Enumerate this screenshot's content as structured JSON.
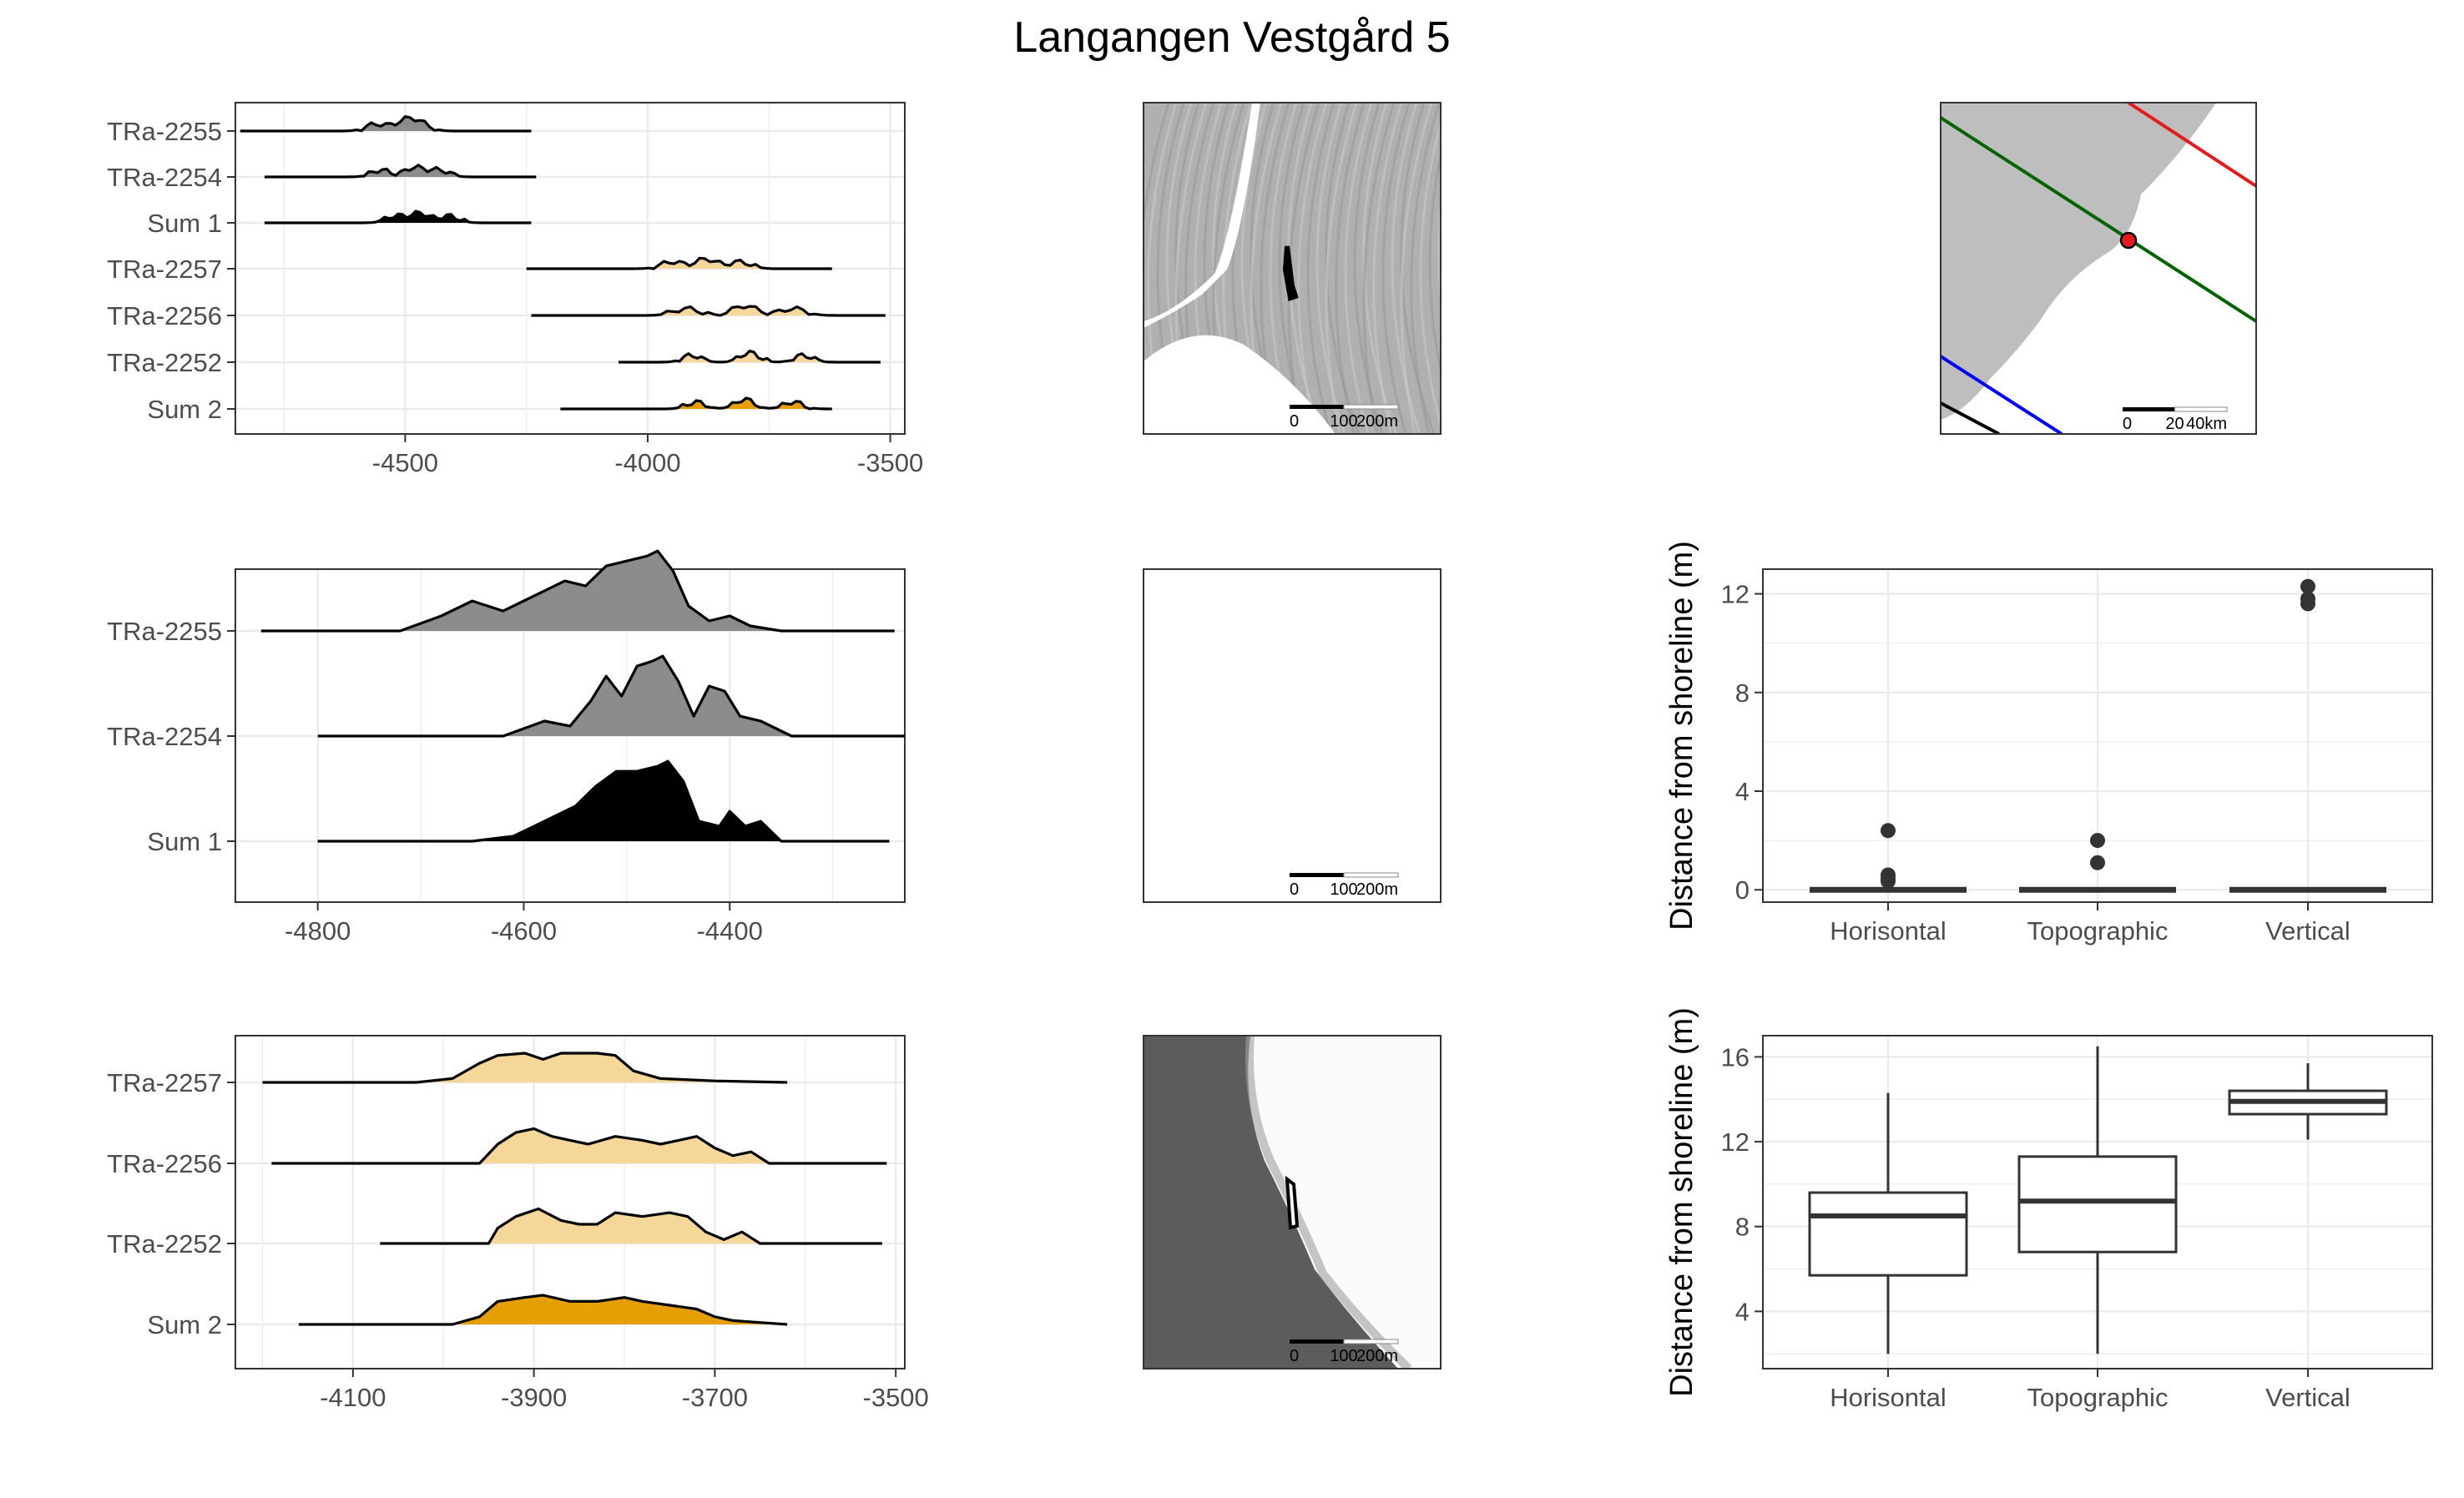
{
  "figure": {
    "title": "Langangen Vestgård 5"
  },
  "colors": {
    "group1": "#8c8c8c",
    "group1_dark": "#000000",
    "group2_light": "#f5d79a",
    "group2": "#e69f00"
  },
  "chart_data": [
    {
      "id": "ridge1",
      "type": "area",
      "xlim": [
        -4850,
        -3470
      ],
      "xticks": [
        -4500,
        -4000,
        -3500
      ],
      "xtick_labels": [
        "-4500",
        "-4000",
        "-3500"
      ],
      "rows": [
        {
          "label": "TRa-2255",
          "range": [
            -4840,
            -4240
          ],
          "peaks": [
            -4560,
            -4500,
            -4470
          ],
          "fill": "group1"
        },
        {
          "label": "TRa-2254",
          "range": [
            -4790,
            -4230
          ],
          "peaks": [
            -4550,
            -4480,
            -4430
          ],
          "fill": "group1"
        },
        {
          "label": "Sum 1",
          "range": [
            -4790,
            -4240
          ],
          "peaks": [
            -4520,
            -4470,
            -4410
          ],
          "fill": "group1_dark"
        },
        {
          "label": "TRa-2257",
          "range": [
            -4250,
            -3620
          ],
          "peaks": [
            -3950,
            -3880,
            -3810
          ],
          "fill": "group2_light"
        },
        {
          "label": "TRa-2256",
          "range": [
            -4240,
            -3510
          ],
          "peaks": [
            -3920,
            -3800,
            -3700
          ],
          "fill": "group2_light"
        },
        {
          "label": "TRa-2252",
          "range": [
            -4060,
            -3520
          ],
          "peaks": [
            -3910,
            -3790,
            -3680
          ],
          "fill": "group2_light"
        },
        {
          "label": "Sum 2",
          "range": [
            -4180,
            -3620
          ],
          "peaks": [
            -3900,
            -3800,
            -3700
          ],
          "fill": "group2"
        }
      ]
    },
    {
      "id": "ridge2",
      "type": "area",
      "xlim": [
        -4880,
        -4230
      ],
      "xticks": [
        -4800,
        -4600,
        -4400
      ],
      "xtick_labels": [
        "-4800",
        "-4600",
        "-4400"
      ],
      "rows": [
        {
          "label": "TRa-2255",
          "range": [
            -4855,
            -4240
          ],
          "fill": "group1",
          "profile": [
            [
              -4855,
              0
            ],
            [
              -4720,
              0
            ],
            [
              -4680,
              0.15
            ],
            [
              -4650,
              0.3
            ],
            [
              -4620,
              0.2
            ],
            [
              -4590,
              0.35
            ],
            [
              -4560,
              0.5
            ],
            [
              -4540,
              0.45
            ],
            [
              -4520,
              0.65
            ],
            [
              -4500,
              0.7
            ],
            [
              -4480,
              0.75
            ],
            [
              -4470,
              0.8
            ],
            [
              -4455,
              0.6
            ],
            [
              -4440,
              0.25
            ],
            [
              -4420,
              0.1
            ],
            [
              -4400,
              0.15
            ],
            [
              -4380,
              0.05
            ],
            [
              -4350,
              0
            ],
            [
              -4240,
              0
            ]
          ]
        },
        {
          "label": "TRa-2254",
          "range": [
            -4800,
            -4230
          ],
          "fill": "group1",
          "profile": [
            [
              -4800,
              0
            ],
            [
              -4620,
              0
            ],
            [
              -4580,
              0.15
            ],
            [
              -4555,
              0.1
            ],
            [
              -4535,
              0.35
            ],
            [
              -4520,
              0.6
            ],
            [
              -4505,
              0.4
            ],
            [
              -4490,
              0.7
            ],
            [
              -4475,
              0.75
            ],
            [
              -4465,
              0.8
            ],
            [
              -4450,
              0.55
            ],
            [
              -4435,
              0.2
            ],
            [
              -4420,
              0.5
            ],
            [
              -4405,
              0.45
            ],
            [
              -4390,
              0.2
            ],
            [
              -4370,
              0.15
            ],
            [
              -4340,
              0
            ],
            [
              -4230,
              0
            ]
          ]
        },
        {
          "label": "Sum 1",
          "range": [
            -4800,
            -4245
          ],
          "fill": "group1_dark",
          "profile": [
            [
              -4800,
              0
            ],
            [
              -4650,
              0
            ],
            [
              -4610,
              0.05
            ],
            [
              -4580,
              0.2
            ],
            [
              -4550,
              0.35
            ],
            [
              -4530,
              0.55
            ],
            [
              -4510,
              0.7
            ],
            [
              -4490,
              0.7
            ],
            [
              -4470,
              0.75
            ],
            [
              -4460,
              0.8
            ],
            [
              -4445,
              0.6
            ],
            [
              -4430,
              0.2
            ],
            [
              -4410,
              0.15
            ],
            [
              -4400,
              0.3
            ],
            [
              -4385,
              0.15
            ],
            [
              -4370,
              0.2
            ],
            [
              -4350,
              0
            ],
            [
              -4245,
              0
            ]
          ]
        }
      ]
    },
    {
      "id": "ridge3",
      "type": "area",
      "xlim": [
        -4230,
        -3490
      ],
      "xticks": [
        -4100,
        -3900,
        -3700,
        -3500
      ],
      "xtick_labels": [
        "-4100",
        "-3900",
        "-3700",
        "-3500"
      ],
      "rows": [
        {
          "label": "TRa-2257",
          "range": [
            -4200,
            -3620
          ],
          "fill": "group2_light",
          "profile": [
            [
              -4200,
              0
            ],
            [
              -4030,
              0
            ],
            [
              -3990,
              0.05
            ],
            [
              -3960,
              0.25
            ],
            [
              -3940,
              0.35
            ],
            [
              -3910,
              0.38
            ],
            [
              -3890,
              0.3
            ],
            [
              -3870,
              0.38
            ],
            [
              -3830,
              0.38
            ],
            [
              -3810,
              0.35
            ],
            [
              -3790,
              0.15
            ],
            [
              -3760,
              0.05
            ],
            [
              -3700,
              0.02
            ],
            [
              -3620,
              0
            ]
          ]
        },
        {
          "label": "TRa-2256",
          "range": [
            -4190,
            -3510
          ],
          "fill": "group2_light",
          "profile": [
            [
              -4190,
              0
            ],
            [
              -3960,
              0
            ],
            [
              -3940,
              0.25
            ],
            [
              -3920,
              0.4
            ],
            [
              -3900,
              0.45
            ],
            [
              -3880,
              0.35
            ],
            [
              -3860,
              0.3
            ],
            [
              -3840,
              0.25
            ],
            [
              -3810,
              0.35
            ],
            [
              -3780,
              0.3
            ],
            [
              -3760,
              0.25
            ],
            [
              -3740,
              0.3
            ],
            [
              -3720,
              0.35
            ],
            [
              -3700,
              0.2
            ],
            [
              -3680,
              0.1
            ],
            [
              -3660,
              0.15
            ],
            [
              -3640,
              0
            ],
            [
              -3510,
              0
            ]
          ]
        },
        {
          "label": "TRa-2252",
          "range": [
            -4070,
            -3515
          ],
          "fill": "group2_light",
          "profile": [
            [
              -4070,
              0
            ],
            [
              -3950,
              0
            ],
            [
              -3940,
              0.2
            ],
            [
              -3920,
              0.35
            ],
            [
              -3895,
              0.45
            ],
            [
              -3870,
              0.3
            ],
            [
              -3850,
              0.25
            ],
            [
              -3830,
              0.25
            ],
            [
              -3810,
              0.4
            ],
            [
              -3780,
              0.35
            ],
            [
              -3750,
              0.4
            ],
            [
              -3730,
              0.35
            ],
            [
              -3710,
              0.15
            ],
            [
              -3690,
              0.05
            ],
            [
              -3670,
              0.15
            ],
            [
              -3650,
              0
            ],
            [
              -3515,
              0
            ]
          ]
        },
        {
          "label": "Sum 2",
          "range": [
            -4160,
            -3620
          ],
          "fill": "group2",
          "profile": [
            [
              -4160,
              0
            ],
            [
              -3990,
              0
            ],
            [
              -3960,
              0.1
            ],
            [
              -3940,
              0.3
            ],
            [
              -3910,
              0.35
            ],
            [
              -3890,
              0.38
            ],
            [
              -3860,
              0.3
            ],
            [
              -3830,
              0.3
            ],
            [
              -3800,
              0.35
            ],
            [
              -3780,
              0.3
            ],
            [
              -3750,
              0.25
            ],
            [
              -3720,
              0.2
            ],
            [
              -3700,
              0.1
            ],
            [
              -3680,
              0.05
            ],
            [
              -3620,
              0
            ]
          ]
        }
      ]
    },
    {
      "id": "boxplot_top",
      "type": "scatter",
      "ylabel": "Distance from shoreline (m)",
      "categories": [
        "Horisontal",
        "Topographic",
        "Vertical"
      ],
      "ylim": [
        -0.5,
        13
      ],
      "yticks": [
        0,
        4,
        8,
        12
      ],
      "ytick_labels": [
        "0",
        "4",
        "8",
        "12"
      ],
      "box_median": [
        0,
        0,
        0
      ],
      "outliers": [
        [
          2.4,
          0.6,
          0.45,
          0.35
        ],
        [
          2.0,
          1.1
        ],
        [
          12.3,
          11.8,
          11.6
        ]
      ]
    },
    {
      "id": "boxplot_bottom",
      "type": "bar",
      "ylabel": "Distance from shoreline (m)",
      "categories": [
        "Horisontal",
        "Topographic",
        "Vertical"
      ],
      "ylim": [
        1.3,
        17
      ],
      "yticks": [
        4,
        8,
        12,
        16
      ],
      "ytick_labels": [
        "4",
        "8",
        "12",
        "16"
      ],
      "boxes": [
        {
          "min": 2.0,
          "q1": 5.7,
          "median": 8.5,
          "q3": 9.6,
          "max": 14.3
        },
        {
          "min": 2.0,
          "q1": 6.8,
          "median": 9.2,
          "q3": 11.3,
          "max": 16.5
        },
        {
          "min": 12.1,
          "q1": 13.3,
          "median": 13.9,
          "q3": 14.4,
          "max": 15.7
        }
      ]
    }
  ],
  "maps": [
    {
      "id": "map1",
      "scale_labels": [
        "0",
        "100",
        "200m"
      ]
    },
    {
      "id": "map2",
      "scale_labels": [
        "0",
        "100",
        "200m"
      ]
    },
    {
      "id": "map3",
      "scale_labels": [
        "0",
        "100",
        "200m"
      ]
    },
    {
      "id": "map4",
      "scale_labels": [
        "0",
        "20",
        "40km"
      ]
    }
  ]
}
